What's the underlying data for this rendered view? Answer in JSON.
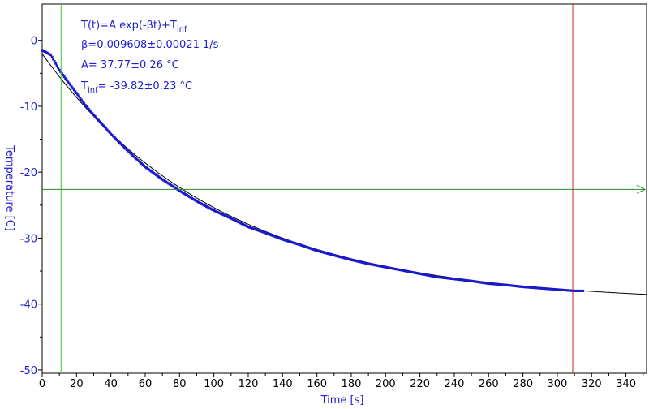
{
  "chart_data": {
    "type": "scatter",
    "xlabel": "Time [s]",
    "ylabel": "Temperature [C]",
    "xlim": [
      0,
      352
    ],
    "ylim": [
      -50.5,
      5.5
    ],
    "xticks": [
      0,
      20,
      40,
      60,
      80,
      100,
      120,
      140,
      160,
      180,
      200,
      220,
      240,
      260,
      280,
      300,
      320,
      340
    ],
    "yticks": [
      0,
      -10,
      -20,
      -30,
      -40,
      -50
    ],
    "grid": false,
    "colors": {
      "axes": "#1f1fcf",
      "data": "#1a1acc",
      "fit": "#000000",
      "cursor_vertical_left": "#33cc33",
      "cursor_vertical_right": "#cc2222",
      "cursor_horizontal": "#2a8a2a"
    },
    "annotations": {
      "formula_main": "T(t)=A exp(-βt)+T",
      "formula_sub": "inf",
      "beta": "β=0.009608±0.00021 1/s",
      "amp": "A= 37.77±0.26 °C",
      "tinf_main": "T",
      "tinf_sub": "inf",
      "tinf_value": "= -39.82±0.23 °C"
    },
    "fit": {
      "A": 37.77,
      "beta": 0.009608,
      "T_inf": -39.82,
      "x": [
        0,
        352
      ]
    },
    "series": [
      {
        "x": [
          0,
          5,
          10,
          15,
          20,
          25,
          30,
          40,
          50,
          60,
          70,
          80,
          90,
          100,
          110,
          120,
          130,
          140,
          150,
          160,
          170,
          180,
          190,
          200,
          210,
          220,
          230,
          240,
          250,
          260,
          270,
          280,
          290,
          300,
          310,
          315
        ],
        "y": [
          -1.5,
          -2.2,
          -4.5,
          -6.3,
          -8.0,
          -9.8,
          -11.3,
          -14.2,
          -16.8,
          -19.2,
          -21.1,
          -22.8,
          -24.4,
          -25.8,
          -27.0,
          -28.3,
          -29.2,
          -30.2,
          -31.0,
          -31.9,
          -32.6,
          -33.3,
          -33.9,
          -34.4,
          -34.9,
          -35.4,
          -35.9,
          -36.2,
          -36.5,
          -36.9,
          -37.1,
          -37.4,
          -37.6,
          -37.8,
          -38.0,
          -38.0
        ]
      }
    ],
    "cursors": {
      "vertical_left_x": 11,
      "vertical_right_x": 309,
      "horizontal_y": -22.6
    }
  }
}
